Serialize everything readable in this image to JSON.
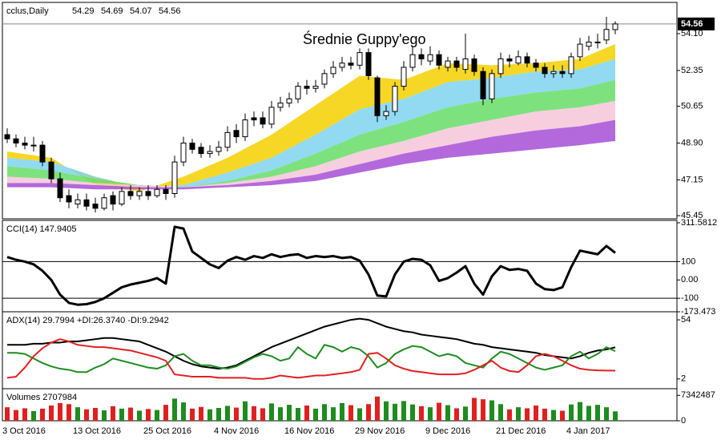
{
  "chart_data": [
    {
      "type": "candlestick",
      "title": "cclus,Daily",
      "annotation": "Średnie Guppy'ego",
      "open": [
        49.3,
        49.1,
        48.9,
        48.8,
        48.8,
        48.0,
        47.2,
        46.4,
        46.0,
        46.2,
        46.0,
        45.8,
        46.4,
        46.0,
        46.6,
        46.4,
        46.6,
        46.4,
        46.7,
        46.5,
        48.0,
        48.9,
        48.7,
        48.4,
        48.5,
        48.7,
        49.5,
        49.2,
        50.1,
        50.1,
        49.8,
        50.6,
        50.8,
        51.0,
        51.6,
        51.5,
        51.7,
        52.2,
        52.5,
        52.7,
        52.6,
        53.2,
        52.0,
        50.2,
        50.4,
        51.6,
        52.5,
        53.1,
        52.8,
        53.1,
        52.5,
        52.8,
        52.4,
        52.9,
        52.3,
        51.0,
        52.2,
        52.9,
        52.7,
        53.0,
        52.7,
        52.5,
        52.2,
        52.3,
        52.2,
        53.0,
        53.5,
        53.7,
        53.8,
        54.29
      ],
      "high": [
        49.6,
        49.3,
        49.2,
        49.2,
        49.0,
        48.2,
        47.5,
        46.7,
        46.5,
        46.5,
        46.3,
        46.5,
        46.6,
        46.8,
        46.9,
        46.8,
        46.9,
        46.9,
        46.9,
        48.3,
        49.2,
        49.1,
        48.9,
        48.8,
        49.0,
        49.7,
        49.8,
        50.3,
        50.4,
        50.4,
        50.9,
        51.1,
        51.3,
        51.8,
        51.9,
        51.9,
        52.4,
        52.8,
        53.0,
        53.0,
        53.4,
        53.4,
        52.1,
        50.7,
        51.8,
        52.8,
        53.5,
        53.4,
        53.5,
        53.3,
        53.0,
        53.0,
        54.1,
        53.1,
        52.5,
        52.4,
        53.2,
        53.1,
        53.3,
        53.2,
        52.9,
        52.7,
        52.6,
        52.6,
        53.2,
        53.9,
        54.0,
        54.1,
        54.9,
        54.69
      ],
      "low": [
        48.9,
        48.7,
        48.6,
        48.5,
        47.8,
        47.0,
        46.1,
        45.8,
        45.8,
        45.7,
        45.6,
        45.7,
        45.7,
        45.9,
        46.2,
        46.2,
        46.2,
        46.3,
        46.2,
        46.3,
        47.8,
        48.4,
        48.2,
        48.2,
        48.3,
        48.5,
        48.9,
        49.0,
        49.7,
        49.6,
        49.6,
        50.4,
        50.6,
        50.8,
        51.2,
        51.3,
        51.5,
        52.0,
        52.3,
        52.4,
        52.4,
        51.9,
        49.9,
        50.0,
        50.2,
        51.4,
        52.3,
        52.6,
        52.6,
        52.4,
        52.3,
        52.3,
        52.2,
        52.1,
        50.7,
        50.8,
        52.0,
        52.5,
        52.6,
        52.5,
        52.3,
        52.0,
        52.0,
        52.0,
        52.0,
        52.8,
        53.3,
        53.4,
        53.6,
        54.07
      ],
      "close": [
        49.1,
        48.9,
        48.8,
        48.8,
        48.0,
        47.2,
        46.3,
        46.1,
        46.2,
        45.9,
        45.8,
        46.3,
        46.0,
        46.6,
        46.4,
        46.6,
        46.4,
        46.7,
        46.5,
        48.0,
        48.9,
        48.6,
        48.4,
        48.5,
        48.7,
        49.4,
        49.2,
        50.0,
        50.0,
        49.8,
        50.6,
        50.8,
        51.0,
        51.6,
        51.5,
        51.6,
        52.2,
        52.5,
        52.7,
        52.6,
        53.2,
        52.1,
        50.2,
        50.4,
        51.6,
        52.5,
        53.1,
        52.9,
        53.1,
        52.6,
        52.8,
        52.5,
        52.9,
        52.3,
        51.0,
        52.2,
        52.9,
        52.8,
        53.0,
        52.7,
        52.5,
        52.2,
        52.3,
        52.2,
        53.0,
        53.6,
        53.7,
        53.7,
        54.3,
        54.56
      ],
      "ribbons": [
        {
          "color": "#f5d000",
          "x": [
            0,
            5,
            10,
            15,
            20,
            25,
            30,
            35,
            40,
            45,
            50,
            55,
            60,
            65,
            69
          ],
          "values": [
            48.5,
            48.2,
            46.9,
            46.6,
            47.3,
            48.2,
            49.3,
            50.7,
            52.1,
            51.9,
            52.7,
            52.6,
            52.7,
            52.9,
            53.6
          ]
        },
        {
          "color": "#7fd3f0",
          "x": [
            0,
            5,
            10,
            15,
            20,
            25,
            30,
            35,
            40,
            45,
            50,
            55,
            60,
            65,
            69
          ],
          "values": [
            48.2,
            48.0,
            47.3,
            46.8,
            46.9,
            47.5,
            48.2,
            49.3,
            50.5,
            51.0,
            51.8,
            52.0,
            52.3,
            52.4,
            52.9
          ]
        },
        {
          "color": "#66dd66",
          "x": [
            0,
            5,
            10,
            15,
            20,
            25,
            30,
            35,
            40,
            45,
            50,
            55,
            60,
            65,
            69
          ],
          "values": [
            47.8,
            47.6,
            47.2,
            46.9,
            46.8,
            47.1,
            47.6,
            48.4,
            49.3,
            49.9,
            50.6,
            51.0,
            51.3,
            51.5,
            51.9
          ]
        },
        {
          "color": "#f6c6d8",
          "x": [
            0,
            5,
            10,
            15,
            20,
            25,
            30,
            35,
            40,
            45,
            50,
            55,
            60,
            65,
            69
          ],
          "values": [
            47.3,
            47.2,
            47.0,
            46.9,
            46.8,
            47.0,
            47.3,
            47.8,
            48.5,
            49.0,
            49.6,
            50.0,
            50.4,
            50.6,
            50.9
          ]
        },
        {
          "color": "#a64fd6",
          "x": [
            0,
            5,
            10,
            15,
            20,
            25,
            30,
            35,
            40,
            45,
            50,
            55,
            60,
            65,
            69
          ],
          "values": [
            47.0,
            47.0,
            46.9,
            46.8,
            46.8,
            46.9,
            47.1,
            47.4,
            47.9,
            48.4,
            48.8,
            49.2,
            49.5,
            49.7,
            50.0
          ]
        },
        {
          "color": "#9b45cc",
          "x": [
            0,
            5,
            10,
            15,
            20,
            25,
            30,
            35,
            40,
            45,
            50,
            55,
            60,
            65,
            69
          ],
          "values": [
            46.8,
            46.8,
            46.7,
            46.7,
            46.7,
            46.8,
            46.9,
            47.1,
            47.5,
            47.9,
            48.2,
            48.4,
            48.6,
            48.8,
            49.0
          ]
        }
      ],
      "ylim": [
        45.3,
        55.47
      ],
      "yticks": [
        {
          "value": 54.1,
          "label": "54.10"
        },
        52.35,
        50.65,
        {
          "value": 48.9,
          "label": "48.90"
        },
        47.15,
        45.45
      ]
    },
    {
      "type": "line",
      "title": "CCI(14) 147.9405",
      "color": "#000000",
      "values": [
        125,
        110,
        100,
        85,
        50,
        0,
        -80,
        -125,
        -135,
        -132,
        -120,
        -100,
        -70,
        -40,
        -25,
        -15,
        -5,
        10,
        -20,
        290,
        280,
        155,
        120,
        85,
        65,
        105,
        125,
        110,
        130,
        120,
        140,
        125,
        135,
        140,
        120,
        130,
        125,
        130,
        120,
        125,
        105,
        30,
        -85,
        -90,
        30,
        100,
        115,
        110,
        80,
        -5,
        10,
        40,
        75,
        -20,
        -80,
        20,
        75,
        55,
        60,
        50,
        -20,
        -50,
        -55,
        -40,
        70,
        160,
        150,
        140,
        185,
        147.9405
      ],
      "levels": [
        100,
        -100
      ],
      "ylim": [
        -173.473,
        311.5812
      ],
      "yticks": [
        311.5812,
        100,
        {
          "value": 0,
          "label": "0.00"
        },
        -100,
        -173.473
      ]
    },
    {
      "type": "line",
      "title": "ADX(14) 29.7994 +DI:26.3740 -DI:9.2942",
      "series": [
        {
          "color": "#000000",
          "values": [
            32,
            32,
            32,
            33,
            33,
            34,
            34,
            35,
            35,
            36,
            37,
            38,
            38,
            37,
            36,
            35,
            32,
            29,
            26,
            22,
            18,
            15,
            13,
            12,
            11,
            12,
            14,
            18,
            22,
            26,
            30,
            33,
            36,
            39,
            42,
            45,
            48,
            50,
            52,
            54,
            55,
            54,
            51,
            48,
            46,
            44,
            43,
            41,
            40,
            39,
            38,
            37,
            35,
            33,
            32,
            30,
            29,
            28,
            27,
            26,
            25,
            23,
            22,
            21,
            20,
            22,
            25,
            27,
            28,
            29.7994
          ]
        },
        {
          "color": "#1e8c1e",
          "values": [
            25,
            25,
            24,
            20,
            16,
            13,
            11,
            10,
            8,
            8,
            12,
            15,
            20,
            18,
            16,
            14,
            12,
            11,
            14,
            22,
            24,
            18,
            14,
            14,
            12,
            11,
            13,
            17,
            21,
            24,
            22,
            18,
            20,
            30,
            24,
            20,
            32,
            30,
            26,
            30,
            28,
            22,
            12,
            16,
            24,
            28,
            31,
            30,
            26,
            22,
            24,
            22,
            16,
            14,
            12,
            20,
            26,
            24,
            20,
            16,
            12,
            10,
            12,
            14,
            22,
            26,
            20,
            24,
            30,
            26.374
          ]
        },
        {
          "color": "#e02020",
          "values": [
            3,
            4,
            12,
            22,
            29,
            34,
            37,
            35,
            32,
            31,
            30,
            30,
            29,
            28,
            27,
            25,
            23,
            21,
            18,
            6,
            5,
            4,
            4,
            4,
            3,
            3,
            3,
            3,
            2,
            2,
            3,
            5,
            4,
            3,
            4,
            5,
            5,
            6,
            7,
            8,
            10,
            24,
            25,
            20,
            14,
            11,
            9,
            8,
            7,
            6,
            6,
            6,
            7,
            10,
            14,
            18,
            12,
            9,
            8,
            14,
            22,
            24,
            22,
            18,
            14,
            11,
            10,
            9.5,
            9.4,
            9.2942
          ]
        }
      ],
      "ylim": [
        -6.6,
        59
      ],
      "yticks": [
        54,
        2
      ]
    },
    {
      "type": "bar",
      "title": "Volumes 2707984",
      "up_color": "#1e8c1e",
      "down_color": "#e02020",
      "values": [
        3900000,
        3100000,
        3600000,
        2800000,
        3500000,
        4400000,
        5100000,
        4800000,
        3900000,
        3300000,
        3700000,
        3000000,
        4200000,
        3500000,
        3800000,
        2900000,
        3400000,
        3100000,
        4600000,
        6400000,
        5300000,
        3500000,
        4000000,
        3300000,
        3700000,
        4300000,
        3800000,
        5600000,
        4200000,
        3600000,
        5000000,
        3900000,
        4600000,
        3700000,
        4400000,
        3500000,
        4800000,
        3900000,
        5100000,
        4500000,
        3600000,
        4800000,
        7000000,
        5600000,
        4900000,
        5700000,
        4700000,
        4200000,
        3900000,
        5200000,
        4500000,
        3600000,
        4100000,
        6600000,
        6200000,
        5900000,
        4800000,
        3300000,
        3900000,
        3600000,
        4400000,
        3500000,
        3100000,
        2900000,
        4700000,
        5400000,
        4300000,
        4600000,
        3900000,
        2707984
      ],
      "categories": [
        "3 Oct 2016",
        null,
        null,
        null,
        null,
        null,
        null,
        null,
        "13 Oct 2016",
        null,
        null,
        null,
        null,
        null,
        null,
        null,
        "25 Oct 2016",
        null,
        null,
        null,
        null,
        null,
        null,
        null,
        "4 Nov 2016",
        null,
        null,
        null,
        null,
        null,
        null,
        null,
        "16 Nov 2016",
        null,
        null,
        null,
        null,
        null,
        null,
        null,
        "29 Nov 2016",
        null,
        null,
        null,
        null,
        null,
        null,
        null,
        "9 Dec 2016",
        null,
        null,
        null,
        null,
        null,
        null,
        null,
        "21 Dec 2016",
        null,
        null,
        null,
        null,
        null,
        null,
        null,
        "4 Jan 2017",
        null,
        null,
        null,
        null,
        null
      ],
      "ylim": [
        0,
        8560000
      ],
      "yticks": [
        7342487,
        0
      ]
    }
  ]
}
